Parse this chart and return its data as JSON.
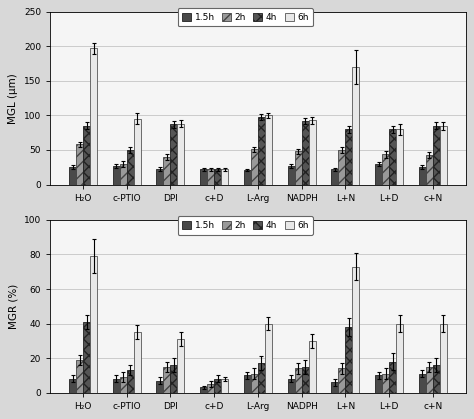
{
  "categories": [
    "H₂O",
    "c-PTIO",
    "DPI",
    "c+D",
    "L-Arg",
    "NADPH",
    "L+N",
    "L+D",
    "c+N"
  ],
  "legend_labels": [
    "1.5h",
    "2h",
    "4h",
    "6h"
  ],
  "top": {
    "ylabel": "MGL (μm)",
    "ylim": [
      0,
      250
    ],
    "yticks": [
      0,
      50,
      100,
      150,
      200,
      250
    ],
    "series": [
      [
        25,
        27,
        23,
        22,
        21,
        27,
        22,
        30,
        25
      ],
      [
        58,
        30,
        40,
        22,
        51,
        48,
        50,
        44,
        43
      ],
      [
        85,
        50,
        87,
        22,
        98,
        92,
        80,
        80,
        85
      ],
      [
        197,
        95,
        88,
        22,
        100,
        93,
        170,
        80,
        85
      ]
    ],
    "errors": [
      [
        3,
        3,
        3,
        2,
        2,
        3,
        2,
        3,
        3
      ],
      [
        4,
        4,
        4,
        2,
        4,
        4,
        4,
        5,
        4
      ],
      [
        5,
        5,
        5,
        2,
        4,
        5,
        5,
        5,
        5
      ],
      [
        8,
        8,
        5,
        2,
        4,
        5,
        25,
        8,
        6
      ]
    ]
  },
  "bottom": {
    "ylabel": "MGR (%)",
    "ylim": [
      0,
      100
    ],
    "yticks": [
      0,
      20,
      40,
      60,
      80,
      100
    ],
    "series": [
      [
        8,
        8,
        7,
        3,
        10,
        8,
        6,
        10,
        11
      ],
      [
        19,
        9,
        15,
        5,
        11,
        14,
        14,
        11,
        15
      ],
      [
        41,
        13,
        16,
        8,
        17,
        15,
        38,
        18,
        16
      ],
      [
        79,
        35,
        31,
        8,
        40,
        30,
        73,
        40,
        40
      ]
    ],
    "errors": [
      [
        2,
        2,
        2,
        1,
        2,
        2,
        2,
        2,
        2
      ],
      [
        3,
        3,
        3,
        2,
        3,
        3,
        3,
        3,
        3
      ],
      [
        4,
        3,
        4,
        2,
        4,
        4,
        5,
        5,
        4
      ],
      [
        10,
        4,
        4,
        1,
        4,
        4,
        8,
        5,
        5
      ]
    ]
  },
  "bar_styles": [
    {
      "facecolor": "#4a4a4a",
      "hatch": "",
      "edgecolor": "#222222"
    },
    {
      "facecolor": "#999999",
      "hatch": "///",
      "edgecolor": "#444444"
    },
    {
      "facecolor": "#555555",
      "hatch": "xxx",
      "edgecolor": "#222222"
    },
    {
      "facecolor": "#e8e8e8",
      "hatch": "",
      "edgecolor": "#555555"
    }
  ],
  "bar_width": 0.16,
  "figure_facecolor": "#d8d8d8",
  "plot_bg": "#f5f5f5"
}
